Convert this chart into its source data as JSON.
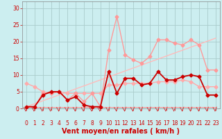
{
  "bg_color": "#cceef0",
  "grid_color": "#aacccc",
  "xlabel": "Vent moyen/en rafales ( km/h )",
  "x_ticks": [
    0,
    1,
    2,
    3,
    4,
    5,
    6,
    7,
    8,
    9,
    10,
    11,
    12,
    13,
    14,
    15,
    16,
    17,
    18,
    19,
    20,
    21,
    22,
    23
  ],
  "ylim": [
    0,
    32
  ],
  "yticks": [
    0,
    5,
    10,
    15,
    20,
    25,
    30
  ],
  "line_rafales_x": [
    0,
    1,
    2,
    3,
    4,
    5,
    6,
    7,
    8,
    9,
    10,
    11,
    12,
    13,
    14,
    15,
    16,
    17,
    18,
    19,
    20,
    21,
    22,
    23
  ],
  "line_rafales_y": [
    0.5,
    0.5,
    4.5,
    4.5,
    5.0,
    2.5,
    4.5,
    2.0,
    4.5,
    0.5,
    17.5,
    27.5,
    16.0,
    14.5,
    13.5,
    15.5,
    20.5,
    20.5,
    19.5,
    19.0,
    20.5,
    19.0,
    11.5,
    11.5
  ],
  "line_rafales_color": "#ff9999",
  "line_rafales_lw": 1.0,
  "line_moy_x": [
    0,
    1,
    2,
    3,
    4,
    5,
    6,
    7,
    8,
    9,
    10,
    11,
    12,
    13,
    14,
    15,
    16,
    17,
    18,
    19,
    20,
    21,
    22,
    23
  ],
  "line_moy_y": [
    0.5,
    0.5,
    4.0,
    5.0,
    5.0,
    2.5,
    3.5,
    1.0,
    0.5,
    0.5,
    11.0,
    4.5,
    9.0,
    9.0,
    7.0,
    7.5,
    11.0,
    8.5,
    8.5,
    9.5,
    10.0,
    9.5,
    4.0,
    4.0
  ],
  "line_moy_color": "#cc0000",
  "line_moy_lw": 1.3,
  "line_flat_x": [
    0,
    1,
    2,
    3,
    4,
    5,
    6,
    7,
    8,
    9,
    10,
    11,
    12,
    13,
    14,
    15,
    16,
    17,
    18,
    19,
    20,
    21,
    22,
    23
  ],
  "line_flat_y": [
    7.5,
    6.5,
    5.0,
    4.5,
    5.0,
    4.5,
    4.5,
    4.5,
    4.5,
    4.5,
    7.0,
    7.0,
    7.5,
    7.5,
    7.5,
    7.5,
    8.0,
    8.0,
    8.0,
    8.5,
    8.0,
    6.5,
    6.5,
    6.5
  ],
  "line_flat_color": "#ffaaaa",
  "line_flat_lw": 1.0,
  "line_trend_x": [
    0,
    23
  ],
  "line_trend_y": [
    0.5,
    21.0
  ],
  "line_trend_color": "#ffbbbb",
  "line_trend_lw": 1.0,
  "line_bottom_x": [
    0,
    1,
    2,
    3,
    4,
    5,
    6,
    7,
    8,
    9,
    10,
    11,
    12,
    13,
    14,
    15,
    16,
    17,
    18,
    19,
    20,
    21,
    22,
    23
  ],
  "line_bottom_y": [
    0.5,
    0.5,
    0.5,
    0.5,
    0.5,
    0.5,
    0.5,
    0.5,
    0.5,
    0.5,
    0.5,
    0.5,
    0.5,
    0.5,
    0.5,
    0.5,
    0.5,
    0.5,
    0.5,
    0.5,
    0.5,
    0.5,
    0.5,
    0.5
  ],
  "line_bottom_color": "#ff8888",
  "line_bottom_lw": 0.7,
  "tick_fontsize": 5.5,
  "xlabel_fontsize": 7,
  "marker_size": 2.5
}
